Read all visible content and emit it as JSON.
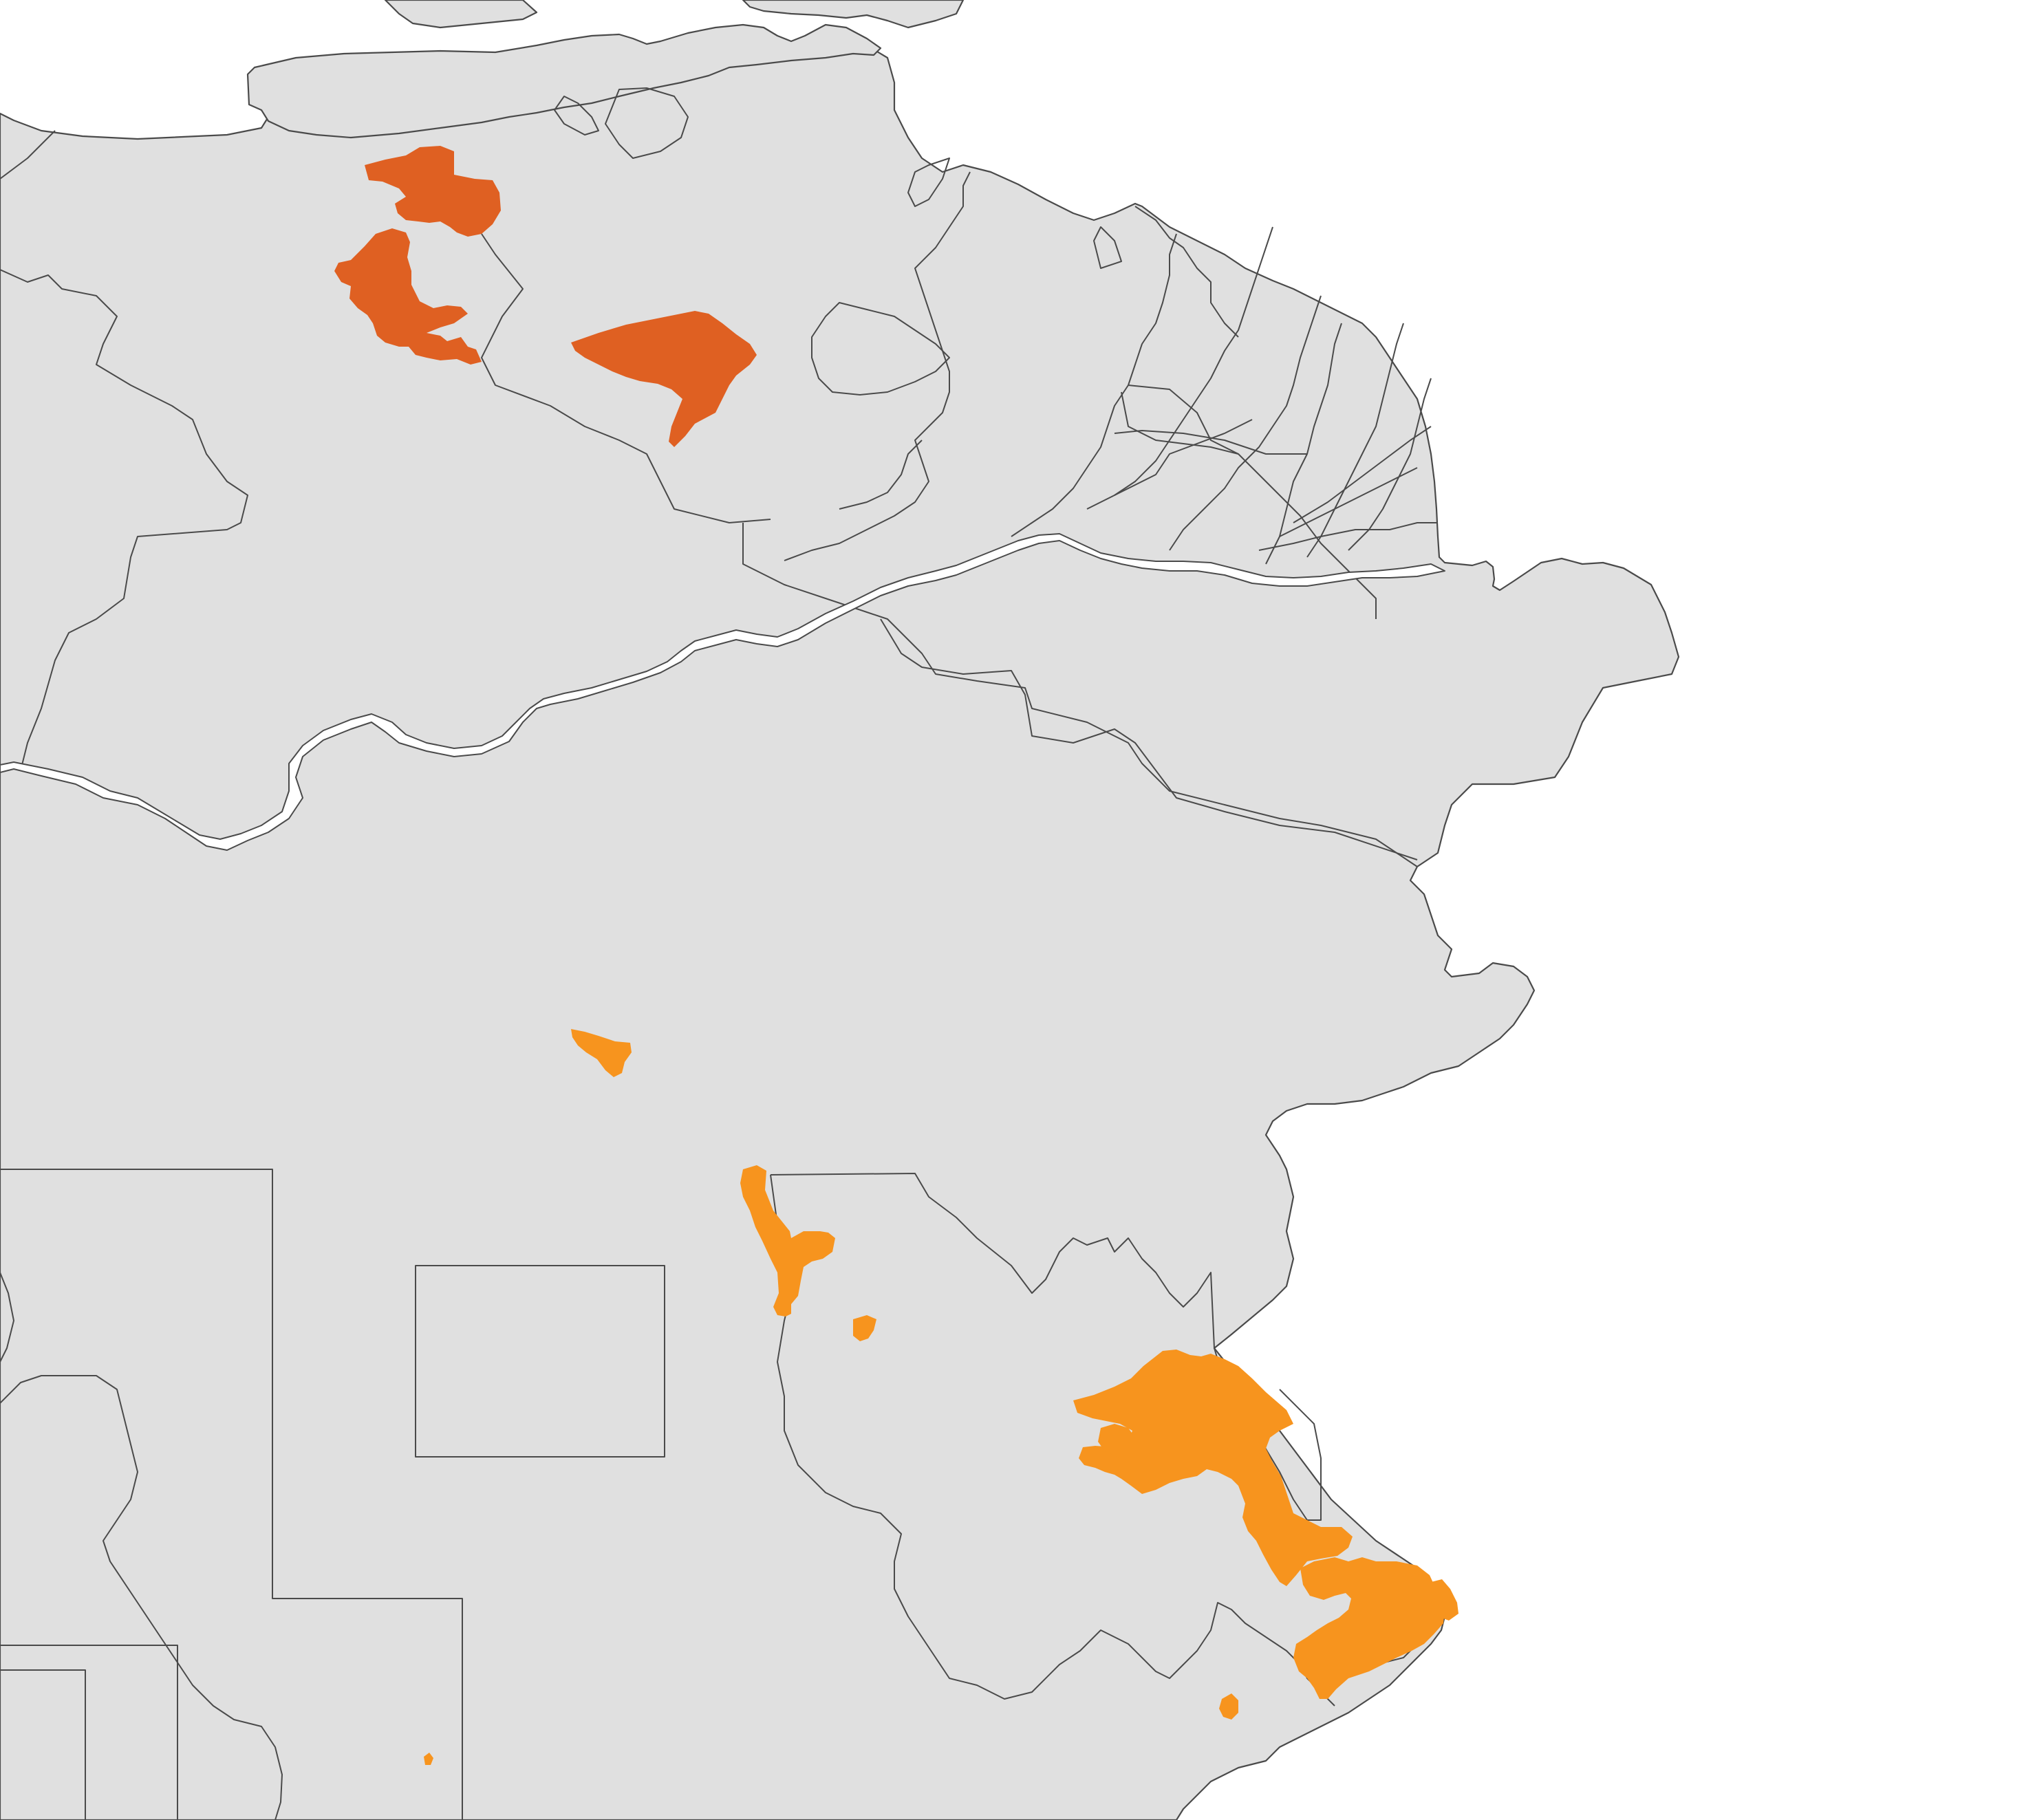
{
  "map": {
    "colors": {
      "background": "#ffffff",
      "land": "#e0e0e0",
      "boundary": "#4a4a4a",
      "highlight_dark": "#df6022",
      "highlight_light": "#f7941e"
    },
    "highlighted_area_groups": [
      {
        "color": "#df6022",
        "count": 3
      },
      {
        "color": "#f7941e",
        "count": 9
      }
    ]
  }
}
